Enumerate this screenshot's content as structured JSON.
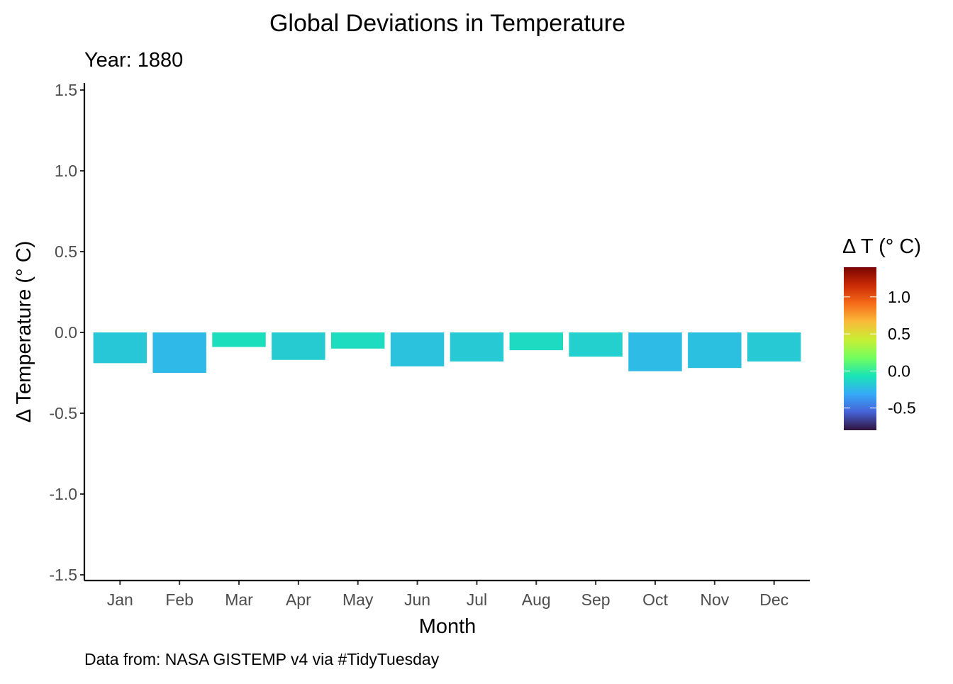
{
  "chart_data": {
    "type": "bar",
    "title": "Global Deviations in Temperature",
    "subtitle": "Year: 1880",
    "xlabel": "Month",
    "ylabel": "Δ Temperature (° C)",
    "caption": "Data from: NASA GISTEMP v4 via #TidyTuesday",
    "categories": [
      "Jan",
      "Feb",
      "Mar",
      "Apr",
      "May",
      "Jun",
      "Jul",
      "Aug",
      "Sep",
      "Oct",
      "Nov",
      "Dec"
    ],
    "values": [
      -0.19,
      -0.25,
      -0.09,
      -0.17,
      -0.1,
      -0.21,
      -0.18,
      -0.11,
      -0.15,
      -0.24,
      -0.22,
      -0.18
    ],
    "ylim": [
      -1.5,
      1.5
    ],
    "yticks": [
      -1.5,
      -1.0,
      -0.5,
      0.0,
      0.5,
      1.0,
      1.5
    ],
    "ytick_labels": [
      "-1.5",
      "-1.0",
      "-0.5",
      "0.0",
      "0.5",
      "1.0",
      "1.5"
    ],
    "grid": false,
    "legend": {
      "title": "Δ T (° C)",
      "placement": "right",
      "range": [
        -0.8,
        1.4
      ],
      "ticks": [
        -0.5,
        0.0,
        0.5,
        1.0
      ],
      "tick_labels": [
        "-0.5",
        "0.0",
        "0.5",
        "1.0"
      ],
      "colormap": "turbo",
      "colors": [
        "#30123b",
        "#4662d7",
        "#36aaf9",
        "#1ae4b6",
        "#72fe5e",
        "#c8ef34",
        "#faba39",
        "#f66b19",
        "#ca2a04",
        "#7a0403"
      ]
    }
  }
}
